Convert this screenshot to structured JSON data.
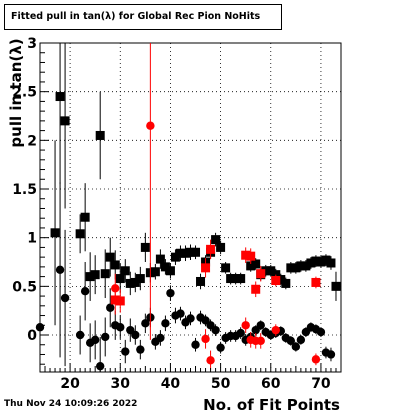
{
  "chart_data": {
    "type": "scatter",
    "title": "Fitted pull in tan(λ) for Global Rec Pion NoHits",
    "xlabel": "No. of Fit Points",
    "ylabel": "pull in tan(λ)",
    "xlim": [
      14,
      74
    ],
    "ylim": [
      -0.38,
      3.0
    ],
    "x_ticks": [
      20,
      30,
      40,
      50,
      60,
      70
    ],
    "y_ticks": [
      0,
      0.5,
      1,
      1.5,
      2,
      2.5,
      3
    ],
    "y_tick_labels": [
      "0",
      "0.5",
      "1",
      "1.5",
      "2",
      "2.5",
      "3"
    ],
    "grid": true,
    "series": [
      {
        "marker": "square",
        "color": "#000000",
        "points": [
          {
            "x": 17,
            "y": 1.05,
            "e": 0.95
          },
          {
            "x": 18,
            "y": 2.45,
            "e": 0.9
          },
          {
            "x": 19,
            "y": 2.2,
            "e": 0.9
          },
          {
            "x": 22,
            "y": 1.04,
            "e": 0.2
          },
          {
            "x": 23,
            "y": 1.21,
            "e": 0.35
          },
          {
            "x": 24,
            "y": 0.6,
            "e": 0.25
          },
          {
            "x": 25,
            "y": 0.62,
            "e": 0.2
          },
          {
            "x": 26,
            "y": 2.05,
            "e": 0.45
          },
          {
            "x": 27,
            "y": 0.63,
            "e": 0.25
          },
          {
            "x": 28,
            "y": 0.8,
            "e": 0.2
          },
          {
            "x": 29,
            "y": 0.72,
            "e": 0.15
          },
          {
            "x": 30,
            "y": 0.58,
            "e": 0.15
          },
          {
            "x": 31,
            "y": 0.66,
            "e": 0.12
          },
          {
            "x": 32,
            "y": 0.53,
            "e": 0.12
          },
          {
            "x": 33,
            "y": 0.54,
            "e": 0.1
          },
          {
            "x": 34,
            "y": 0.58,
            "e": 0.12
          },
          {
            "x": 35,
            "y": 0.9,
            "e": 0.15
          },
          {
            "x": 36,
            "y": 0.64,
            "e": 0.1
          },
          {
            "x": 37,
            "y": 0.65,
            "e": 0.08
          },
          {
            "x": 38,
            "y": 0.78,
            "e": 0.1
          },
          {
            "x": 39,
            "y": 0.7,
            "e": 0.08
          },
          {
            "x": 40,
            "y": 0.66,
            "e": 0.08
          },
          {
            "x": 41,
            "y": 0.8,
            "e": 0.08
          },
          {
            "x": 42,
            "y": 0.84,
            "e": 0.08
          },
          {
            "x": 43,
            "y": 0.84,
            "e": 0.08
          },
          {
            "x": 44,
            "y": 0.85,
            "e": 0.08
          },
          {
            "x": 45,
            "y": 0.85,
            "e": 0.07
          },
          {
            "x": 46,
            "y": 0.55,
            "e": 0.08
          },
          {
            "x": 47,
            "y": 0.75,
            "e": 0.07
          },
          {
            "x": 48,
            "y": 0.85,
            "e": 0.07
          },
          {
            "x": 49,
            "y": 0.98,
            "e": 0.07
          },
          {
            "x": 50,
            "y": 0.9,
            "e": 0.07
          },
          {
            "x": 51,
            "y": 0.69,
            "e": 0.06
          },
          {
            "x": 52,
            "y": 0.58,
            "e": 0.06
          },
          {
            "x": 53,
            "y": 0.58,
            "e": 0.06
          },
          {
            "x": 54,
            "y": 0.58,
            "e": 0.06
          },
          {
            "x": 56,
            "y": 0.71,
            "e": 0.06
          },
          {
            "x": 57,
            "y": 0.73,
            "e": 0.06
          },
          {
            "x": 58,
            "y": 0.62,
            "e": 0.06
          },
          {
            "x": 59,
            "y": 0.66,
            "e": 0.06
          },
          {
            "x": 60,
            "y": 0.66,
            "e": 0.06
          },
          {
            "x": 61,
            "y": 0.62,
            "e": 0.06
          },
          {
            "x": 62,
            "y": 0.57,
            "e": 0.06
          },
          {
            "x": 63,
            "y": 0.53,
            "e": 0.06
          },
          {
            "x": 64,
            "y": 0.69,
            "e": 0.06
          },
          {
            "x": 65,
            "y": 0.69,
            "e": 0.06
          },
          {
            "x": 66,
            "y": 0.71,
            "e": 0.06
          },
          {
            "x": 67,
            "y": 0.71,
            "e": 0.06
          },
          {
            "x": 68,
            "y": 0.74,
            "e": 0.06
          },
          {
            "x": 69,
            "y": 0.76,
            "e": 0.06
          },
          {
            "x": 70,
            "y": 0.75,
            "e": 0.06
          },
          {
            "x": 71,
            "y": 0.77,
            "e": 0.06
          },
          {
            "x": 72,
            "y": 0.74,
            "e": 0.07
          },
          {
            "x": 73,
            "y": 0.5,
            "e": 0.15
          }
        ]
      },
      {
        "marker": "circle",
        "color": "#000000",
        "points": [
          {
            "x": 14,
            "y": 0.08,
            "e": 0.3
          },
          {
            "x": 18,
            "y": 0.67,
            "e": 0.9
          },
          {
            "x": 19,
            "y": 0.38,
            "e": 0.7
          },
          {
            "x": 22,
            "y": 0.0,
            "e": 0.2
          },
          {
            "x": 23,
            "y": 0.45,
            "e": 0.3
          },
          {
            "x": 24,
            "y": -0.08,
            "e": 0.2
          },
          {
            "x": 25,
            "y": -0.05,
            "e": 0.2
          },
          {
            "x": 26,
            "y": -0.32,
            "e": 0.3
          },
          {
            "x": 27,
            "y": -0.02,
            "e": 0.2
          },
          {
            "x": 28,
            "y": 0.28,
            "e": 0.2
          },
          {
            "x": 29,
            "y": 0.1,
            "e": 0.15
          },
          {
            "x": 30,
            "y": 0.08,
            "e": 0.12
          },
          {
            "x": 31,
            "y": -0.17,
            "e": 0.12
          },
          {
            "x": 32,
            "y": 0.05,
            "e": 0.12
          },
          {
            "x": 33,
            "y": 0.0,
            "e": 0.1
          },
          {
            "x": 34,
            "y": -0.15,
            "e": 0.1
          },
          {
            "x": 35,
            "y": 0.12,
            "e": 0.1
          },
          {
            "x": 36,
            "y": 0.18,
            "e": 0.1
          },
          {
            "x": 37,
            "y": -0.07,
            "e": 0.08
          },
          {
            "x": 38,
            "y": -0.03,
            "e": 0.08
          },
          {
            "x": 39,
            "y": 0.12,
            "e": 0.08
          },
          {
            "x": 40,
            "y": 0.43,
            "e": 0.08
          },
          {
            "x": 41,
            "y": 0.2,
            "e": 0.08
          },
          {
            "x": 42,
            "y": 0.22,
            "e": 0.07
          },
          {
            "x": 43,
            "y": 0.13,
            "e": 0.07
          },
          {
            "x": 44,
            "y": 0.17,
            "e": 0.07
          },
          {
            "x": 45,
            "y": -0.1,
            "e": 0.07
          },
          {
            "x": 46,
            "y": 0.18,
            "e": 0.07
          },
          {
            "x": 47,
            "y": 0.15,
            "e": 0.06
          },
          {
            "x": 48,
            "y": 0.1,
            "e": 0.06
          },
          {
            "x": 49,
            "y": 0.05,
            "e": 0.06
          },
          {
            "x": 50,
            "y": -0.13,
            "e": 0.06
          },
          {
            "x": 51,
            "y": -0.03,
            "e": 0.06
          },
          {
            "x": 52,
            "y": -0.01,
            "e": 0.06
          },
          {
            "x": 53,
            "y": -0.01,
            "e": 0.06
          },
          {
            "x": 54,
            "y": 0.02,
            "e": 0.06
          },
          {
            "x": 55,
            "y": -0.05,
            "e": 0.06
          },
          {
            "x": 56,
            "y": -0.02,
            "e": 0.05
          },
          {
            "x": 57,
            "y": 0.05,
            "e": 0.05
          },
          {
            "x": 58,
            "y": 0.1,
            "e": 0.05
          },
          {
            "x": 59,
            "y": 0.03,
            "e": 0.05
          },
          {
            "x": 60,
            "y": 0.0,
            "e": 0.05
          },
          {
            "x": 61,
            "y": 0.02,
            "e": 0.05
          },
          {
            "x": 62,
            "y": 0.04,
            "e": 0.05
          },
          {
            "x": 63,
            "y": -0.03,
            "e": 0.05
          },
          {
            "x": 64,
            "y": -0.06,
            "e": 0.05
          },
          {
            "x": 65,
            "y": -0.12,
            "e": 0.05
          },
          {
            "x": 66,
            "y": -0.05,
            "e": 0.05
          },
          {
            "x": 67,
            "y": 0.03,
            "e": 0.05
          },
          {
            "x": 68,
            "y": 0.08,
            "e": 0.05
          },
          {
            "x": 69,
            "y": 0.06,
            "e": 0.05
          },
          {
            "x": 70,
            "y": 0.03,
            "e": 0.05
          },
          {
            "x": 71,
            "y": -0.18,
            "e": 0.06
          },
          {
            "x": 72,
            "y": -0.2,
            "e": 0.07
          }
        ]
      },
      {
        "marker": "square",
        "color": "#ff0000",
        "points": [
          {
            "x": 29,
            "y": 0.36,
            "e": 0.15
          },
          {
            "x": 30,
            "y": 0.35,
            "e": 0.12
          },
          {
            "x": 47,
            "y": 0.69,
            "e": 0.1
          },
          {
            "x": 48,
            "y": 0.88,
            "e": 0.1
          },
          {
            "x": 55,
            "y": 0.82,
            "e": 0.08
          },
          {
            "x": 56,
            "y": 0.81,
            "e": 0.08
          },
          {
            "x": 57,
            "y": 0.47,
            "e": 0.08
          },
          {
            "x": 58,
            "y": 0.63,
            "e": 0.08
          },
          {
            "x": 61,
            "y": 0.56,
            "e": 0.06
          },
          {
            "x": 69,
            "y": 0.54,
            "e": 0.06
          }
        ]
      },
      {
        "marker": "circle",
        "color": "#ff0000",
        "points": [
          {
            "x": 29,
            "y": 0.48,
            "e": 0.15
          },
          {
            "x": 36,
            "y": 2.15,
            "e": 2.2
          },
          {
            "x": 47,
            "y": -0.04,
            "e": 0.1
          },
          {
            "x": 48,
            "y": -0.26,
            "e": 0.1
          },
          {
            "x": 55,
            "y": 0.1,
            "e": 0.08
          },
          {
            "x": 56,
            "y": -0.05,
            "e": 0.08
          },
          {
            "x": 57,
            "y": -0.06,
            "e": 0.08
          },
          {
            "x": 58,
            "y": -0.06,
            "e": 0.08
          },
          {
            "x": 61,
            "y": 0.05,
            "e": 0.06
          },
          {
            "x": 69,
            "y": -0.25,
            "e": 0.06
          }
        ]
      }
    ]
  },
  "timestamp": "Thu Nov 24 10:09:26 2022"
}
